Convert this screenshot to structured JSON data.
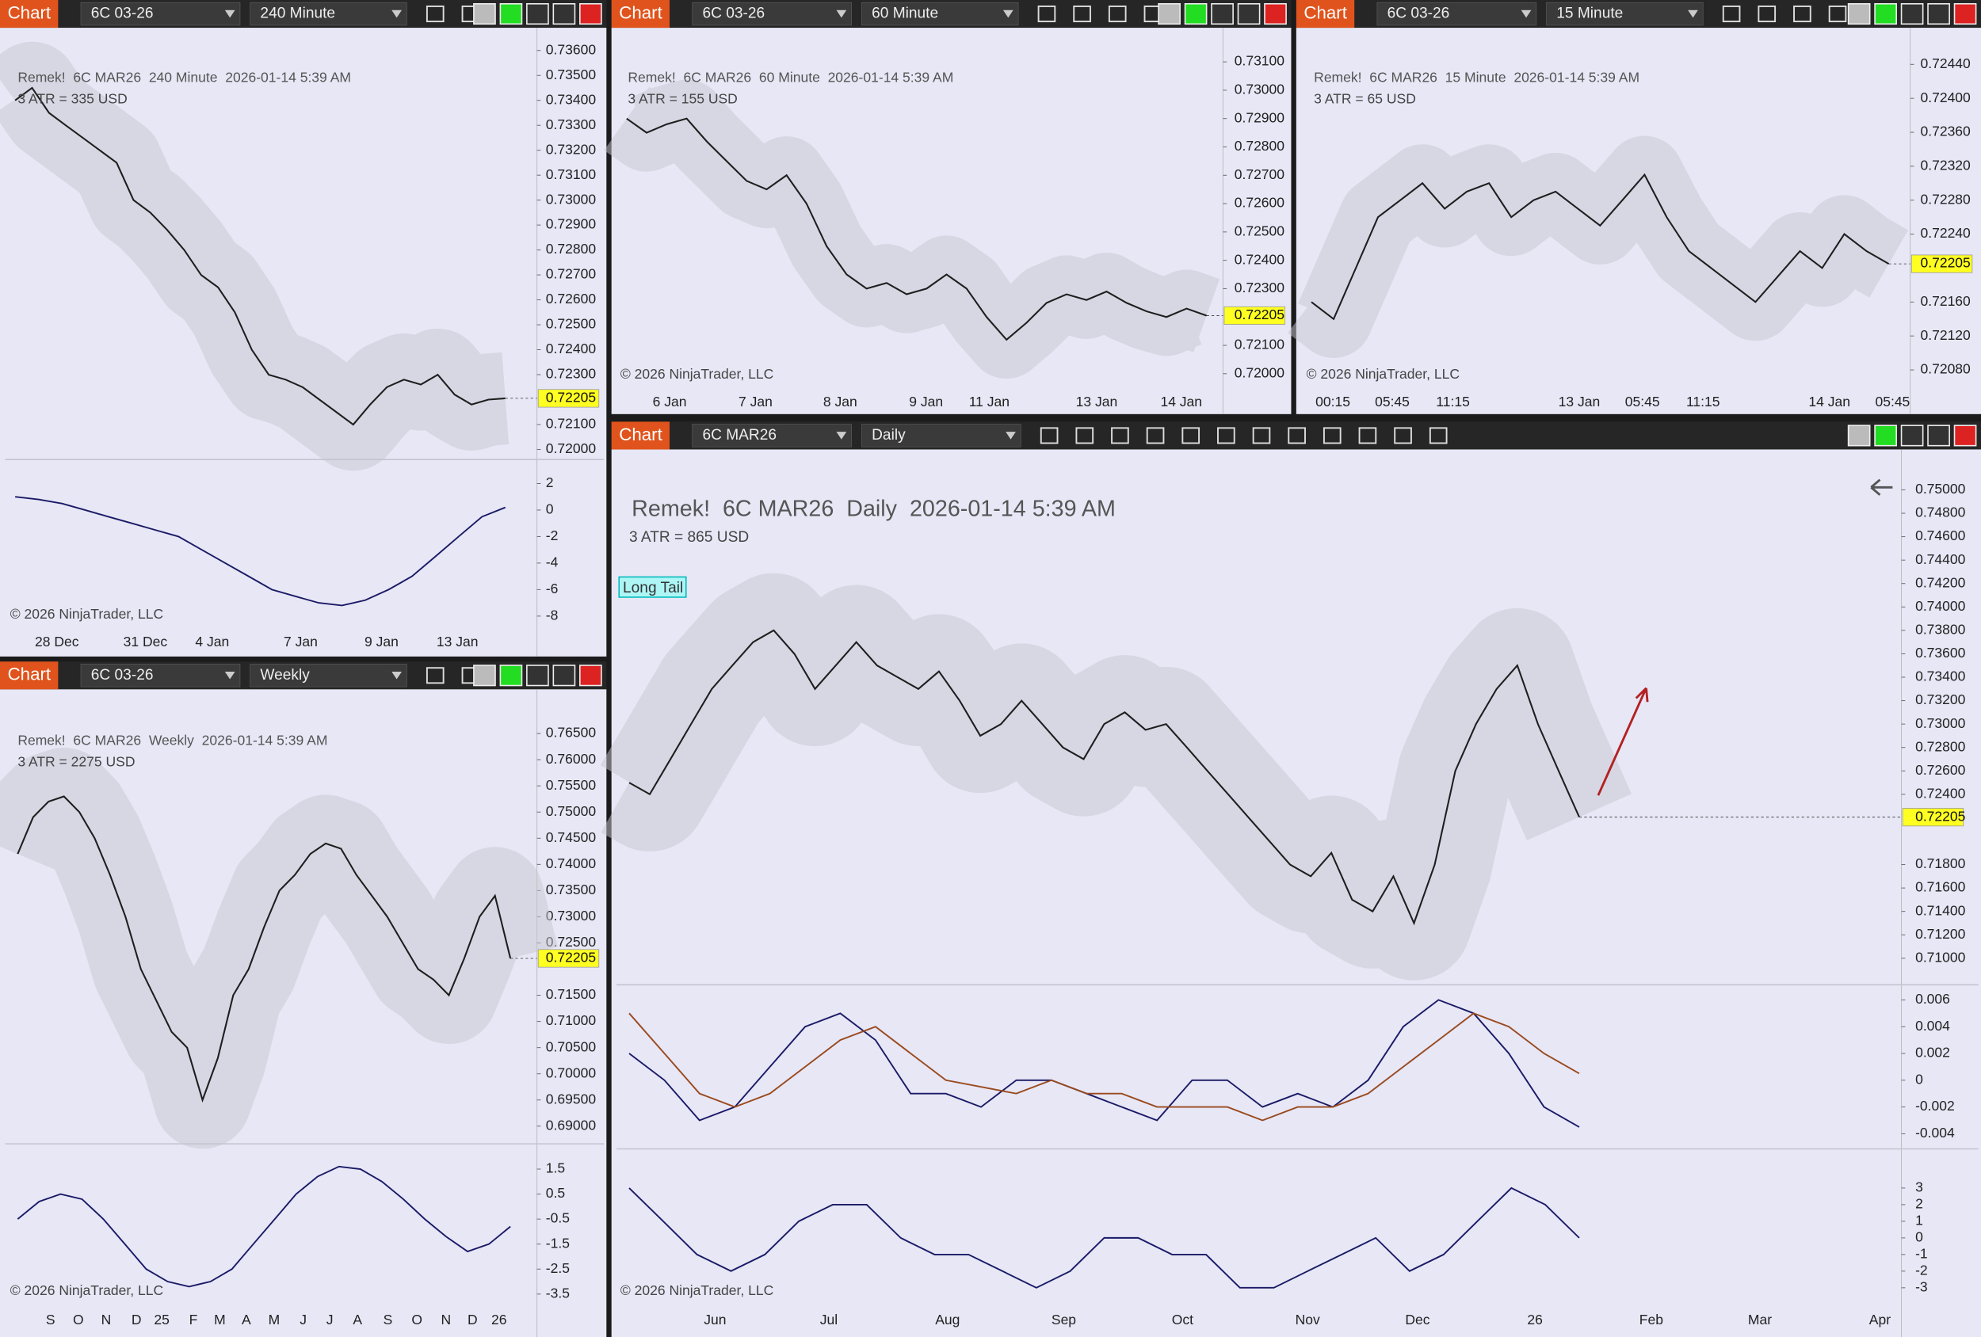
{
  "panels": [
    {
      "chart_button": "Chart",
      "instrument": "6C 03-26",
      "timeframe": "240 Minute",
      "title": "Remek!  6C MAR26  240 Minute  2026-01-14 5:39 AM",
      "atr": "3 ATR = 335 USD",
      "copyright": "© 2026 NinjaTrader, LLC",
      "price_ticks": [
        {
          "value": 0.736,
          "label": "0.73600"
        },
        {
          "value": 0.735,
          "label": "0.73500"
        },
        {
          "value": 0.734,
          "label": "0.73400"
        },
        {
          "value": 0.733,
          "label": "0.73300"
        },
        {
          "value": 0.732,
          "label": "0.73200"
        },
        {
          "value": 0.731,
          "label": "0.73100"
        },
        {
          "value": 0.73,
          "label": "0.73000"
        },
        {
          "value": 0.729,
          "label": "0.72900"
        },
        {
          "value": 0.728,
          "label": "0.72800"
        },
        {
          "value": 0.727,
          "label": "0.72700"
        },
        {
          "value": 0.726,
          "label": "0.72600"
        },
        {
          "value": 0.725,
          "label": "0.72500"
        },
        {
          "value": 0.724,
          "label": "0.72400"
        },
        {
          "value": 0.723,
          "label": "0.72300"
        },
        {
          "value": 0.721,
          "label": "0.72100"
        },
        {
          "value": 0.72,
          "label": "0.72000"
        }
      ],
      "last_price": {
        "value": 0.72205,
        "label": "0.72205"
      },
      "time_labels": [
        "28 Dec",
        "31 Dec",
        "4 Jan",
        "7 Jan",
        "9 Jan",
        "13 Jan"
      ],
      "closes": [
        0.734,
        0.7345,
        0.7335,
        0.733,
        0.7325,
        0.732,
        0.7315,
        0.73,
        0.7295,
        0.7288,
        0.728,
        0.727,
        0.7265,
        0.7255,
        0.724,
        0.723,
        0.7228,
        0.7225,
        0.722,
        0.7215,
        0.721,
        0.7218,
        0.7225,
        0.7228,
        0.7226,
        0.723,
        0.7222,
        0.7218,
        0.722,
        0.72205
      ],
      "oscillators": [
        {
          "ticks": [
            2,
            0,
            -2,
            -4,
            -6,
            -8
          ],
          "lines": [
            {
              "color": "#1a1a66",
              "values": [
                1.0,
                0.8,
                0.5,
                0,
                -0.5,
                -1,
                -1.5,
                -2,
                -3,
                -4,
                -5,
                -6,
                -6.5,
                -7,
                -7.2,
                -6.8,
                -6,
                -5,
                -3.5,
                -2,
                -0.5,
                0.2
              ]
            }
          ]
        }
      ]
    },
    {
      "chart_button": "Chart",
      "instrument": "6C 03-26",
      "timeframe": "60 Minute",
      "title": "Remek!  6C MAR26  60 Minute  2026-01-14 5:39 AM",
      "atr": "3 ATR = 155 USD",
      "copyright": "© 2026 NinjaTrader, LLC",
      "price_ticks": [
        {
          "value": 0.731,
          "label": "0.73100"
        },
        {
          "value": 0.73,
          "label": "0.73000"
        },
        {
          "value": 0.729,
          "label": "0.72900"
        },
        {
          "value": 0.728,
          "label": "0.72800"
        },
        {
          "value": 0.727,
          "label": "0.72700"
        },
        {
          "value": 0.726,
          "label": "0.72600"
        },
        {
          "value": 0.725,
          "label": "0.72500"
        },
        {
          "value": 0.724,
          "label": "0.72400"
        },
        {
          "value": 0.723,
          "label": "0.72300"
        },
        {
          "value": 0.721,
          "label": "0.72100"
        },
        {
          "value": 0.72,
          "label": "0.72000"
        }
      ],
      "last_price": {
        "value": 0.72205,
        "label": "0.72205"
      },
      "time_labels": [
        "6 Jan",
        "7 Jan",
        "8 Jan",
        "9 Jan",
        "11 Jan",
        "13 Jan",
        "14 Jan"
      ],
      "closes": [
        0.729,
        0.7285,
        0.7288,
        0.729,
        0.7282,
        0.7275,
        0.7268,
        0.7265,
        0.727,
        0.726,
        0.7245,
        0.7235,
        0.723,
        0.7232,
        0.7228,
        0.723,
        0.7235,
        0.723,
        0.722,
        0.7212,
        0.7218,
        0.7225,
        0.7228,
        0.7226,
        0.7229,
        0.7225,
        0.7222,
        0.722,
        0.7223,
        0.72205
      ],
      "oscillators": []
    },
    {
      "chart_button": "Chart",
      "instrument": "6C 03-26",
      "timeframe": "15 Minute",
      "title": "Remek!  6C MAR26  15 Minute  2026-01-14 5:39 AM",
      "atr": "3 ATR = 65 USD",
      "copyright": "© 2026 NinjaTrader, LLC",
      "price_ticks": [
        {
          "value": 0.7244,
          "label": "0.72440"
        },
        {
          "value": 0.724,
          "label": "0.72400"
        },
        {
          "value": 0.7236,
          "label": "0.72360"
        },
        {
          "value": 0.7232,
          "label": "0.72320"
        },
        {
          "value": 0.7228,
          "label": "0.72280"
        },
        {
          "value": 0.7224,
          "label": "0.72240"
        },
        {
          "value": 0.7216,
          "label": "0.72160"
        },
        {
          "value": 0.7212,
          "label": "0.72120"
        },
        {
          "value": 0.7208,
          "label": "0.72080"
        }
      ],
      "last_price": {
        "value": 0.72205,
        "label": "0.72205"
      },
      "time_labels": [
        "00:15",
        "05:45",
        "11:15",
        "13 Jan",
        "05:45",
        "11:15",
        "14 Jan",
        "05:45"
      ],
      "closes": [
        0.7216,
        0.7214,
        0.722,
        0.7226,
        0.7228,
        0.723,
        0.7227,
        0.7229,
        0.723,
        0.7226,
        0.7228,
        0.7229,
        0.7227,
        0.7225,
        0.7228,
        0.7231,
        0.7226,
        0.7222,
        0.722,
        0.7218,
        0.7216,
        0.7219,
        0.7222,
        0.722,
        0.7224,
        0.7222,
        0.72205
      ],
      "oscillators": []
    },
    {
      "chart_button": "Chart",
      "instrument": "6C 03-26",
      "timeframe": "Weekly",
      "title": "Remek!  6C MAR26  Weekly  2026-01-14 5:39 AM",
      "atr": "3 ATR = 2275 USD",
      "copyright": "© 2026 NinjaTrader, LLC",
      "price_ticks": [
        {
          "value": 0.765,
          "label": "0.76500"
        },
        {
          "value": 0.76,
          "label": "0.76000"
        },
        {
          "value": 0.755,
          "label": "0.75500"
        },
        {
          "value": 0.75,
          "label": "0.75000"
        },
        {
          "value": 0.745,
          "label": "0.74500"
        },
        {
          "value": 0.74,
          "label": "0.74000"
        },
        {
          "value": 0.735,
          "label": "0.73500"
        },
        {
          "value": 0.73,
          "label": "0.73000"
        },
        {
          "value": 0.725,
          "label": "0.72500"
        },
        {
          "value": 0.715,
          "label": "0.71500"
        },
        {
          "value": 0.71,
          "label": "0.71000"
        },
        {
          "value": 0.705,
          "label": "0.70500"
        },
        {
          "value": 0.7,
          "label": "0.70000"
        },
        {
          "value": 0.695,
          "label": "0.69500"
        },
        {
          "value": 0.69,
          "label": "0.69000"
        }
      ],
      "last_price": {
        "value": 0.72205,
        "label": "0.72205"
      },
      "time_labels": [
        "S",
        "O",
        "N",
        "D",
        "25",
        "F",
        "M",
        "A",
        "M",
        "J",
        "J",
        "A",
        "S",
        "O",
        "N",
        "D",
        "26"
      ],
      "closes": [
        0.742,
        0.749,
        0.752,
        0.753,
        0.75,
        0.745,
        0.738,
        0.73,
        0.72,
        0.714,
        0.708,
        0.705,
        0.695,
        0.703,
        0.715,
        0.72,
        0.728,
        0.735,
        0.738,
        0.742,
        0.744,
        0.743,
        0.738,
        0.734,
        0.73,
        0.725,
        0.72,
        0.718,
        0.715,
        0.722,
        0.73,
        0.734,
        0.72205
      ],
      "oscillators": [
        {
          "ticks": [
            1.5,
            0.5,
            -0.5,
            -1.5,
            -2.5,
            -3.5
          ],
          "lines": [
            {
              "color": "#1a1a66",
              "values": [
                -0.5,
                0.2,
                0.5,
                0.3,
                -0.5,
                -1.5,
                -2.5,
                -3.0,
                -3.2,
                -3.0,
                -2.5,
                -1.5,
                -0.5,
                0.5,
                1.2,
                1.6,
                1.5,
                1.0,
                0.3,
                -0.5,
                -1.2,
                -1.8,
                -1.5,
                -0.8
              ]
            }
          ]
        }
      ]
    },
    {
      "chart_button": "Chart",
      "instrument": "6C MAR26",
      "timeframe": "Daily",
      "title": "Remek!  6C MAR26  Daily  2026-01-14 5:39 AM",
      "atr": "3 ATR = 865 USD",
      "copyright": "© 2026 NinjaTrader, LLC",
      "annotation": "Long Tail",
      "price_ticks": [
        {
          "value": 0.75,
          "label": "0.75000"
        },
        {
          "value": 0.748,
          "label": "0.74800"
        },
        {
          "value": 0.746,
          "label": "0.74600"
        },
        {
          "value": 0.744,
          "label": "0.74400"
        },
        {
          "value": 0.742,
          "label": "0.74200"
        },
        {
          "value": 0.74,
          "label": "0.74000"
        },
        {
          "value": 0.738,
          "label": "0.73800"
        },
        {
          "value": 0.736,
          "label": "0.73600"
        },
        {
          "value": 0.734,
          "label": "0.73400"
        },
        {
          "value": 0.732,
          "label": "0.73200"
        },
        {
          "value": 0.73,
          "label": "0.73000"
        },
        {
          "value": 0.728,
          "label": "0.72800"
        },
        {
          "value": 0.726,
          "label": "0.72600"
        },
        {
          "value": 0.724,
          "label": "0.72400"
        },
        {
          "value": 0.718,
          "label": "0.71800"
        },
        {
          "value": 0.716,
          "label": "0.71600"
        },
        {
          "value": 0.714,
          "label": "0.71400"
        },
        {
          "value": 0.712,
          "label": "0.71200"
        },
        {
          "value": 0.71,
          "label": "0.71000"
        }
      ],
      "last_price": {
        "value": 0.72205,
        "label": "0.72205"
      },
      "time_labels": [
        "Jun",
        "Jul",
        "Aug",
        "Sep",
        "Oct",
        "Nov",
        "Dec",
        "26",
        "Feb",
        "Mar",
        "Apr"
      ],
      "closes": [
        0.725,
        0.724,
        0.727,
        0.73,
        0.733,
        0.735,
        0.737,
        0.738,
        0.736,
        0.733,
        0.735,
        0.737,
        0.735,
        0.734,
        0.733,
        0.7345,
        0.732,
        0.729,
        0.73,
        0.732,
        0.73,
        0.728,
        0.727,
        0.73,
        0.731,
        0.7295,
        0.73,
        0.728,
        0.726,
        0.724,
        0.722,
        0.72,
        0.718,
        0.717,
        0.719,
        0.715,
        0.714,
        0.717,
        0.713,
        0.718,
        0.726,
        0.73,
        0.733,
        0.735,
        0.73,
        0.726,
        0.72205
      ],
      "oscillators": [
        {
          "ticks": [
            0.006,
            0.004,
            0.002,
            0,
            -0.002,
            -0.004
          ],
          "lines": [
            {
              "color": "#1a1a66",
              "values": [
                0.002,
                0.0,
                -0.003,
                -0.002,
                0.001,
                0.004,
                0.005,
                0.003,
                -0.001,
                -0.001,
                -0.002,
                0.0,
                0.0,
                -0.001,
                -0.002,
                -0.003,
                0.0,
                0.0,
                -0.002,
                -0.001,
                -0.002,
                0.0,
                0.004,
                0.006,
                0.005,
                0.002,
                -0.002,
                -0.0035
              ]
            },
            {
              "color": "#9a4a1e",
              "values": [
                0.005,
                0.002,
                -0.001,
                -0.002,
                -0.001,
                0.001,
                0.003,
                0.004,
                0.002,
                0.0,
                -0.0005,
                -0.001,
                0.0,
                -0.001,
                -0.001,
                -0.002,
                -0.002,
                -0.002,
                -0.003,
                -0.002,
                -0.002,
                -0.001,
                0.001,
                0.003,
                0.005,
                0.004,
                0.002,
                0.0005
              ]
            }
          ]
        },
        {
          "ticks": [
            3,
            2,
            1,
            0,
            -1,
            -2,
            -3
          ],
          "lines": [
            {
              "color": "#1a1a66",
              "values": [
                3,
                1,
                -1,
                -2,
                -1,
                1,
                2,
                2,
                0,
                -1,
                -1,
                -2,
                -3,
                -2,
                0,
                0,
                -1,
                -1,
                -3,
                -3,
                -2,
                -1,
                0,
                -2,
                -1,
                1,
                3,
                2,
                0
              ]
            }
          ]
        }
      ]
    }
  ]
}
